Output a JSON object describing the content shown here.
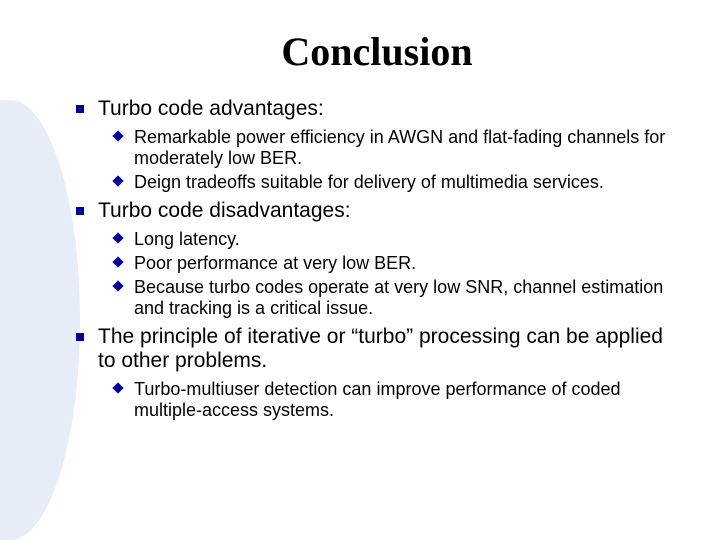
{
  "title": "Conclusion",
  "title_fontsize": 40,
  "l1_fontsize": 21,
  "l2_fontsize": 18,
  "bullet_color": "#000099",
  "bg_shape_color": "#e6ecf8",
  "text_color": "#000000",
  "items": [
    {
      "text": "Turbo code advantages:",
      "sub": [
        "Remarkable power efficiency in AWGN and flat-fading channels for moderately low BER.",
        "Deign tradeoffs suitable for delivery of multimedia services."
      ]
    },
    {
      "text": "Turbo code disadvantages:",
      "sub": [
        "Long latency.",
        "Poor performance at very low BER.",
        "Because turbo codes operate at very low SNR, channel estimation and tracking is a critical issue."
      ]
    },
    {
      "text": "The principle of iterative or “turbo” processing can be applied to other problems.",
      "sub": [
        "Turbo-multiuser detection can improve performance of coded multiple-access systems."
      ]
    }
  ]
}
